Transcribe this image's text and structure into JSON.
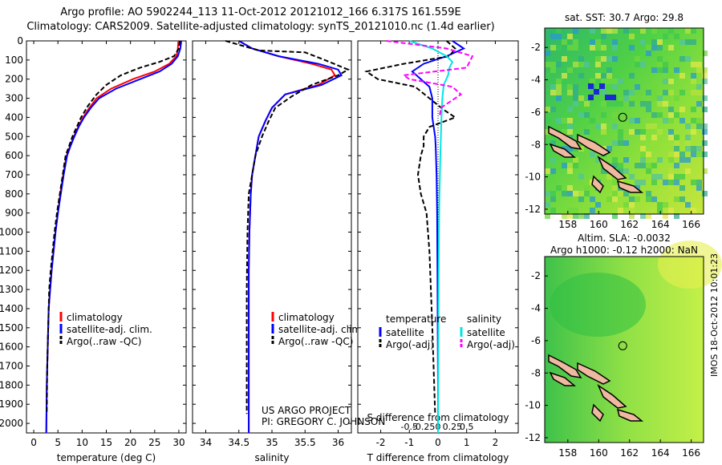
{
  "header": {
    "title_line1": "Argo profile: AO 5902244_113 11-Oct-2012 20121012_166 6.317S 161.559E",
    "title_line2": "Climatology: CARS2009. Satellite-adjusted climatology: synTS_20121010.nc (1.4d earlier)"
  },
  "colors": {
    "climatology": "#ff0000",
    "satellite": "#0000ff",
    "argo": "#000000",
    "sal_satellite": "#00e5e5",
    "sal_argo": "#ff00ff"
  },
  "stamp": "IMOS 18-Oct-2012 10:01:23",
  "chart_data": [
    {
      "type": "line",
      "id": "temperature",
      "xlabel": "temperature (deg C)",
      "xlim": [
        -1.5,
        31.5
      ],
      "ylim": [
        2050,
        0
      ],
      "xticks": [
        0,
        5,
        10,
        15,
        20,
        25,
        30
      ],
      "yticks": [
        0,
        100,
        200,
        300,
        400,
        500,
        600,
        700,
        800,
        900,
        1000,
        1100,
        1200,
        1300,
        1400,
        1500,
        1600,
        1700,
        1800,
        1900,
        2000
      ],
      "legend": [
        "climatology",
        "satellite-adj. clim.",
        "Argo(..raw -QC)"
      ],
      "series": [
        {
          "name": "climatology",
          "color": "#ff0000",
          "dash": "",
          "x": [
            29.9,
            29.8,
            29.5,
            28.0,
            25.0,
            20.5,
            16.0,
            13.0,
            11.5,
            10.2,
            9.2,
            8.3,
            7.5,
            6.8,
            6.1,
            5.5,
            5.0,
            4.5,
            4.1,
            3.7,
            3.4,
            3.1,
            2.9,
            2.7,
            2.6
          ],
          "y": [
            0,
            40,
            80,
            120,
            160,
            200,
            250,
            300,
            350,
            400,
            450,
            500,
            550,
            600,
            700,
            800,
            900,
            1000,
            1100,
            1200,
            1300,
            1400,
            1600,
            1800,
            2050
          ]
        },
        {
          "name": "satellite-adj. clim.",
          "color": "#0000ff",
          "dash": "",
          "x": [
            30.5,
            30.3,
            29.8,
            28.5,
            26.0,
            22.0,
            17.0,
            13.5,
            11.8,
            10.4,
            9.3,
            8.4,
            7.6,
            6.9,
            6.2,
            5.6,
            5.0,
            4.5,
            4.1,
            3.7,
            3.4,
            3.1,
            2.9,
            2.7,
            2.6
          ],
          "y": [
            0,
            40,
            80,
            120,
            160,
            200,
            250,
            300,
            350,
            400,
            450,
            500,
            550,
            600,
            700,
            800,
            900,
            1000,
            1100,
            1200,
            1300,
            1400,
            1600,
            1800,
            2050
          ]
        },
        {
          "name": "Argo(..raw -QC)",
          "color": "#000000",
          "dash": "6,3",
          "x": [
            30.2,
            30.0,
            29.0,
            26.0,
            22.0,
            18.0,
            15.0,
            13.0,
            11.2,
            9.8,
            8.9,
            8.0,
            7.3,
            6.6,
            6.0,
            5.4,
            4.8,
            4.3,
            3.9,
            3.5,
            3.2,
            3.0,
            2.8,
            2.7
          ],
          "y": [
            0,
            40,
            80,
            110,
            140,
            180,
            230,
            280,
            340,
            400,
            450,
            500,
            550,
            600,
            700,
            800,
            900,
            1000,
            1100,
            1200,
            1300,
            1500,
            1700,
            1950
          ]
        }
      ]
    },
    {
      "type": "line",
      "id": "salinity",
      "xlabel": "salinity",
      "xlim": [
        33.8,
        36.2
      ],
      "ylim": [
        2050,
        0
      ],
      "xticks": [
        34,
        34.5,
        35,
        35.5,
        36
      ],
      "legend": [
        "climatology",
        "satellite-adj. clim.",
        "Argo(..raw -QC)"
      ],
      "series": [
        {
          "name": "climatology",
          "color": "#ff0000",
          "dash": "",
          "x": [
            34.5,
            34.7,
            35.1,
            35.6,
            35.9,
            35.95,
            35.7,
            35.2,
            35.0,
            34.9,
            34.8,
            34.75,
            34.7,
            34.68,
            34.66,
            34.65,
            34.65,
            34.65,
            34.65
          ],
          "y": [
            0,
            40,
            80,
            120,
            150,
            180,
            230,
            280,
            350,
            420,
            500,
            600,
            700,
            800,
            1000,
            1200,
            1500,
            1800,
            2050
          ]
        },
        {
          "name": "satellite-adj. clim.",
          "color": "#0000ff",
          "dash": "",
          "x": [
            34.5,
            34.7,
            35.1,
            35.7,
            36.0,
            36.05,
            35.75,
            35.2,
            35.0,
            34.9,
            34.8,
            34.75,
            34.7,
            34.68,
            34.66,
            34.65,
            34.65,
            34.65,
            34.65
          ],
          "y": [
            0,
            40,
            80,
            120,
            150,
            180,
            230,
            280,
            350,
            420,
            500,
            600,
            700,
            800,
            1000,
            1200,
            1500,
            1800,
            2050
          ]
        },
        {
          "name": "Argo(..raw -QC)",
          "color": "#000000",
          "dash": "6,3",
          "x": [
            34.3,
            34.8,
            35.5,
            35.8,
            36.15,
            36.0,
            35.6,
            35.3,
            35.05,
            34.95,
            34.85,
            34.75,
            34.7,
            34.65,
            34.63,
            34.62,
            34.62,
            34.62
          ],
          "y": [
            0,
            50,
            60,
            100,
            150,
            180,
            230,
            290,
            350,
            420,
            500,
            600,
            700,
            800,
            1000,
            1300,
            1600,
            1950
          ]
        }
      ]
    },
    {
      "type": "line",
      "id": "difference",
      "xlabel": "T difference from climatology",
      "xlabel2": "S difference from climatology",
      "xlim": [
        -2.8,
        2.8
      ],
      "ylim": [
        2050,
        0
      ],
      "xticks": [
        -2,
        -1,
        0,
        1,
        2
      ],
      "xtick_labels": [
        "-2",
        "-1",
        "0",
        "1",
        "2"
      ],
      "xticks2": [
        -1.0,
        -0.5,
        0,
        0.5,
        1.0
      ],
      "xtick2_labels": [
        "-0.5",
        "-0.25",
        "0",
        "0.25",
        "0.5"
      ],
      "legend_headers": [
        "temperature",
        "salinity"
      ],
      "legend": [
        "satellite",
        "Argo(-adj)",
        "satellite",
        "Argo(-adj)"
      ],
      "series": [
        {
          "name": "satellite",
          "group": "temperature",
          "color": "#0000ff",
          "dash": "",
          "x": [
            0.5,
            0.9,
            0.3,
            -0.5,
            -0.9,
            -0.6,
            -0.3,
            -0.2,
            -0.2,
            -0.15,
            -0.1,
            -0.08,
            -0.05,
            -0.03,
            -0.02,
            -0.01,
            0,
            0
          ],
          "y": [
            0,
            40,
            80,
            120,
            160,
            200,
            240,
            300,
            400,
            450,
            500,
            550,
            700,
            900,
            1200,
            1500,
            1800,
            2050
          ]
        },
        {
          "name": "Argo(-adj)",
          "group": "temperature",
          "color": "#000000",
          "dash": "6,3",
          "x": [
            0.3,
            0.6,
            0.4,
            -1.2,
            -2.5,
            -2.1,
            -0.8,
            -0.3,
            0.2,
            0.6,
            -0.3,
            -0.5,
            -0.5,
            -0.6,
            -0.7,
            -0.6,
            -0.4,
            -0.3,
            -0.2,
            -0.1
          ],
          "y": [
            0,
            40,
            80,
            120,
            160,
            200,
            240,
            300,
            360,
            400,
            450,
            500,
            550,
            600,
            700,
            800,
            900,
            1100,
            1500,
            1950
          ]
        },
        {
          "name": "satellite",
          "group": "salinity",
          "color": "#00e5e5",
          "dash": "",
          "x": [
            -1.0,
            -0.2,
            0.3,
            0.5,
            0.4,
            0.35,
            0.2,
            0.15,
            0.12,
            0.1,
            0.08,
            0.05,
            0.03,
            0.02,
            0.01,
            0.0
          ],
          "y": [
            0,
            40,
            80,
            110,
            140,
            180,
            230,
            300,
            400,
            500,
            600,
            800,
            1000,
            1300,
            1600,
            2050
          ]
        },
        {
          "name": "Argo(-adj)",
          "group": "salinity",
          "color": "#ff00ff",
          "dash": "6,3",
          "x": [
            -1.8,
            0.3,
            1.2,
            1.0,
            -1.2,
            -1.0,
            0.5,
            0.8,
            0.1,
            0.05
          ],
          "y": [
            0,
            40,
            80,
            140,
            180,
            200,
            240,
            280,
            350,
            400
          ]
        }
      ]
    },
    {
      "type": "heatmap",
      "id": "sst_map",
      "title": "sat. SST: 30.7  Argo: 29.8",
      "xlim": [
        156.5,
        166.8
      ],
      "ylim": [
        -12.3,
        -0.8
      ],
      "xticks": [
        158,
        160,
        162,
        164,
        166
      ],
      "yticks": [
        -2,
        -4,
        -6,
        -8,
        -10,
        -12
      ],
      "marker": [
        161.559,
        -6.317
      ]
    },
    {
      "type": "heatmap",
      "id": "sla_map",
      "title_line1": "Altim. SLA: -0.0032",
      "title_line2": "Argo h1000: -0.12  h2000: NaN",
      "xlim": [
        156.5,
        166.8
      ],
      "ylim": [
        -12.3,
        -0.8
      ],
      "xticks": [
        158,
        160,
        162,
        164,
        166
      ],
      "yticks": [
        -2,
        -4,
        -6,
        -8,
        -10,
        -12
      ],
      "marker": [
        161.559,
        -6.317
      ]
    }
  ],
  "annotations": {
    "project": "US ARGO PROJECT",
    "pi": "PI: GREGORY C. JOHNSON"
  }
}
